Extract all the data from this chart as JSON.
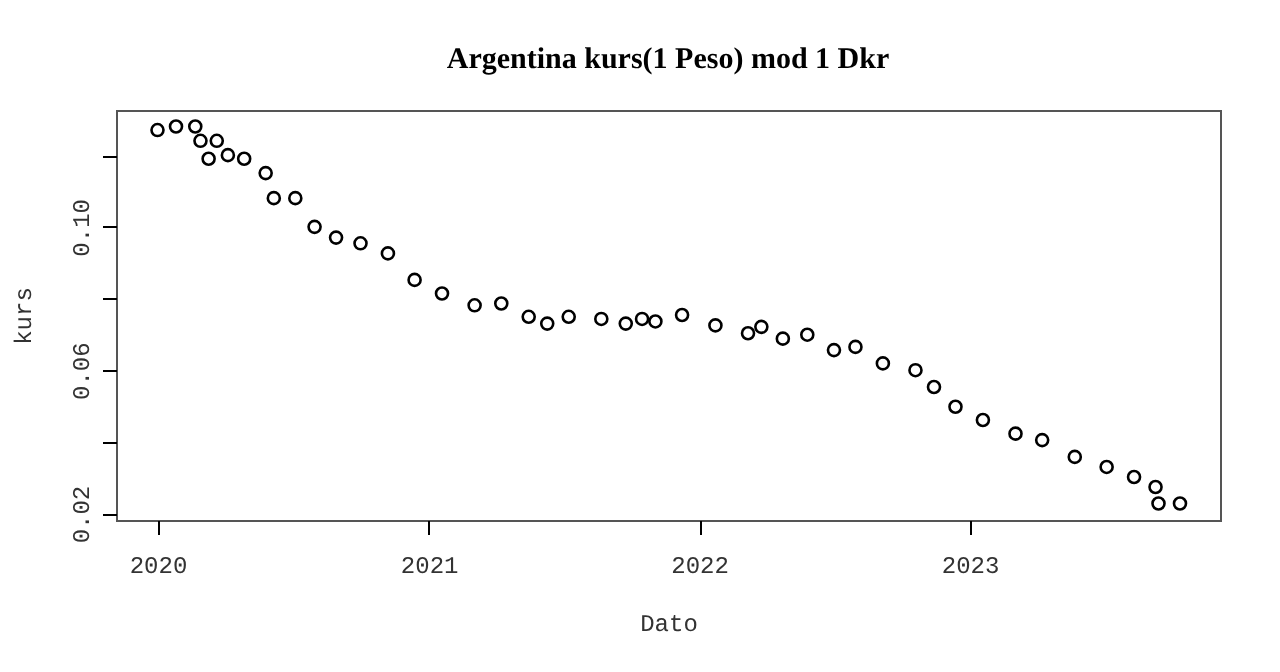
{
  "chart_data": {
    "type": "scatter",
    "title": "Argentina kurs(1 Peso) mod 1 Dkr",
    "xlabel": "Dato",
    "ylabel": "kurs",
    "marker": "circle",
    "grid": false,
    "x": [
      "2020-01-01",
      "2020-01-26",
      "2020-02-21",
      "2020-02-28",
      "2020-03-10",
      "2020-03-21",
      "2020-04-05",
      "2020-04-27",
      "2020-05-26",
      "2020-06-06",
      "2020-07-05",
      "2020-07-31",
      "2020-08-29",
      "2020-10-01",
      "2020-11-07",
      "2020-12-13",
      "2021-01-19",
      "2021-03-04",
      "2021-04-09",
      "2021-05-16",
      "2021-06-10",
      "2021-07-09",
      "2021-08-22",
      "2021-09-24",
      "2021-10-16",
      "2021-11-03",
      "2021-12-09",
      "2022-01-23",
      "2022-03-08",
      "2022-03-26",
      "2022-04-24",
      "2022-05-27",
      "2022-07-02",
      "2022-07-31",
      "2022-09-06",
      "2022-10-20",
      "2022-11-14",
      "2022-12-13",
      "2023-01-19",
      "2023-03-04",
      "2023-04-09",
      "2023-05-23",
      "2023-07-05",
      "2023-08-11",
      "2023-09-09",
      "2023-09-13",
      "2023-10-12"
    ],
    "series": [
      {
        "color": "#000000",
        "values": [
          0.127,
          0.128,
          0.128,
          0.124,
          0.119,
          0.124,
          0.12,
          0.119,
          0.115,
          0.108,
          0.108,
          0.1,
          0.097,
          0.0954,
          0.0926,
          0.0852,
          0.0814,
          0.0781,
          0.0786,
          0.0749,
          0.073,
          0.0749,
          0.0743,
          0.073,
          0.0743,
          0.0736,
          0.0754,
          0.0725,
          0.0703,
          0.0721,
          0.0688,
          0.0699,
          0.0656,
          0.0665,
          0.0619,
          0.06,
          0.0553,
          0.0498,
          0.0461,
          0.0423,
          0.0405,
          0.0358,
          0.033,
          0.0302,
          0.0274,
          0.0228,
          0.0228
        ]
      }
    ],
    "xlim": [
      "2019-11-06",
      "2023-12-05"
    ],
    "xticks": [
      {
        "value": "2020-01-01",
        "label": "2020"
      },
      {
        "value": "2021-01-01",
        "label": "2021"
      },
      {
        "value": "2022-01-01",
        "label": "2022"
      },
      {
        "value": "2023-01-01",
        "label": "2023"
      }
    ],
    "ylim": [
      0.0182,
      0.1326
    ],
    "yticks": [
      {
        "value": 0.02,
        "label": "0.02"
      },
      {
        "value": 0.04,
        "label": null
      },
      {
        "value": 0.06,
        "label": "0.06"
      },
      {
        "value": 0.08,
        "label": null
      },
      {
        "value": 0.1,
        "label": "0.10"
      },
      {
        "value": 0.12,
        "label": null
      }
    ]
  }
}
